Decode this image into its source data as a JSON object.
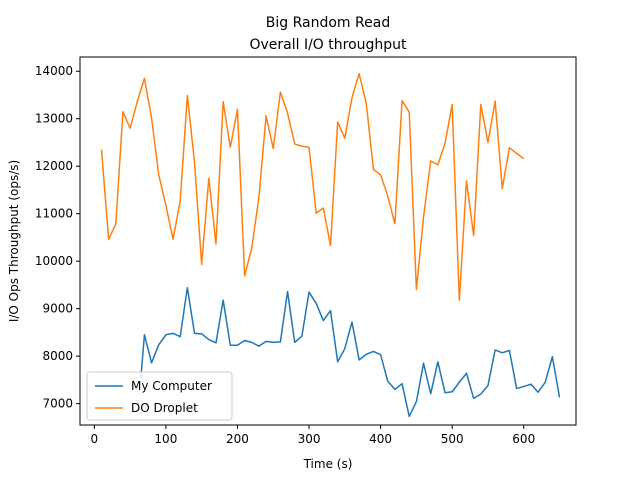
{
  "chart_data": {
    "type": "line",
    "title": [
      "Big Random Read",
      "Overall I/O throughput"
    ],
    "xlabel": "Time (s)",
    "ylabel": "I/O Ops Throughput (ops/s)",
    "xlim": [
      -20,
      673
    ],
    "ylim": [
      6550,
      14300
    ],
    "xticks": [
      0,
      100,
      200,
      300,
      400,
      500,
      600
    ],
    "yticks": [
      7000,
      8000,
      9000,
      10000,
      11000,
      12000,
      13000,
      14000
    ],
    "grid": false,
    "legend_position": "lower-left",
    "series": [
      {
        "name": "My Computer",
        "color": "#1f77b4",
        "x": [
          65,
          70,
          80,
          90,
          100,
          110,
          120,
          130,
          140,
          150,
          160,
          170,
          180,
          190,
          200,
          210,
          220,
          230,
          240,
          250,
          260,
          270,
          280,
          290,
          300,
          310,
          320,
          330,
          340,
          350,
          360,
          370,
          380,
          390,
          400,
          410,
          420,
          430,
          440,
          450,
          460,
          470,
          480,
          490,
          500,
          510,
          520,
          530,
          540,
          550,
          560,
          570,
          580,
          590,
          600,
          610,
          620,
          630,
          640,
          650
        ],
        "values": [
          7530,
          8450,
          7860,
          8240,
          8450,
          8480,
          8410,
          9440,
          8480,
          8470,
          8350,
          8280,
          9180,
          8230,
          8230,
          8330,
          8290,
          8210,
          8310,
          8290,
          8300,
          9360,
          8290,
          8420,
          9350,
          9110,
          8750,
          8960,
          7880,
          8160,
          8720,
          7920,
          8040,
          8100,
          8030,
          7470,
          7300,
          7420,
          6730,
          7040,
          7850,
          7210,
          7880,
          7230,
          7250,
          7450,
          7640,
          7110,
          7200,
          7380,
          8130,
          8070,
          8120,
          7320,
          7360,
          7410,
          7240,
          7450,
          7990,
          7130
        ]
      },
      {
        "name": "DO Droplet",
        "color": "#ff7f0e",
        "x": [
          10,
          20,
          30,
          40,
          50,
          60,
          70,
          80,
          90,
          100,
          110,
          120,
          130,
          140,
          150,
          160,
          170,
          180,
          190,
          200,
          210,
          220,
          230,
          240,
          250,
          260,
          270,
          280,
          290,
          300,
          310,
          320,
          330,
          340,
          350,
          360,
          370,
          380,
          390,
          400,
          410,
          420,
          430,
          440,
          450,
          460,
          470,
          480,
          490,
          500,
          510,
          520,
          530,
          540,
          550,
          560,
          570,
          580,
          590,
          600
        ],
        "values": [
          12350,
          10460,
          10780,
          13150,
          12800,
          13360,
          13850,
          13020,
          11820,
          11180,
          10460,
          11270,
          13490,
          12080,
          9930,
          11750,
          10360,
          13360,
          12400,
          13200,
          9690,
          10280,
          11350,
          13060,
          12370,
          13560,
          13120,
          12470,
          12420,
          12400,
          11010,
          11120,
          10330,
          12930,
          12590,
          13440,
          13950,
          13320,
          11930,
          11820,
          11370,
          10790,
          13380,
          13140,
          9400,
          10930,
          12110,
          12030,
          12480,
          13300,
          9180,
          11690,
          10540,
          13300,
          12500,
          13370,
          11530,
          12390,
          12270,
          12160
        ]
      }
    ]
  }
}
